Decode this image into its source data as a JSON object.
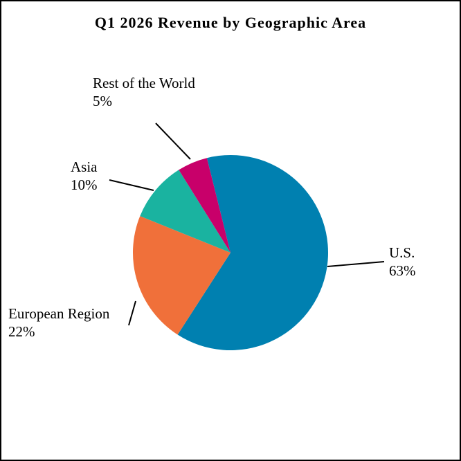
{
  "chart_data": {
    "type": "pie",
    "title": "Q1 2026 Revenue by Geographic Area",
    "categories": [
      "U.S.",
      "European Region",
      "Asia",
      "Rest of the World"
    ],
    "values": [
      63,
      22,
      10,
      5
    ],
    "value_labels": [
      "63%",
      "22%",
      "10%",
      "5%"
    ],
    "colors": [
      "#0080b0",
      "#f0703a",
      "#1ab3a0",
      "#c8006a"
    ]
  }
}
